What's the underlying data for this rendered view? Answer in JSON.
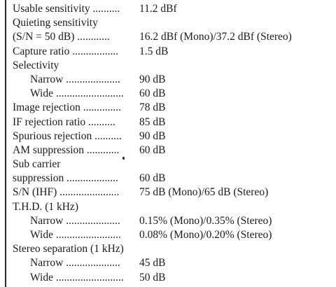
{
  "specs": [
    {
      "label": "Usable sensitivity ..........",
      "value": "11.2 dBf",
      "indent": false
    },
    {
      "label": "Quieting sensitivity",
      "value": "",
      "indent": false
    },
    {
      "label": "(S/N = 50 dB) ............",
      "value": "16.2 dBf (Mono)/37.2 dBf (Stereo)",
      "indent": false
    },
    {
      "label": "Capture ratio .................",
      "value": "1.5 dB",
      "indent": false
    },
    {
      "label": "Selectivity",
      "value": "",
      "indent": false
    },
    {
      "label": "Narrow ....................",
      "value": "90 dB",
      "indent": true
    },
    {
      "label": "Wide .........................",
      "value": "60 dB",
      "indent": true
    },
    {
      "label": "Image rejection ..............",
      "value": "78 dB",
      "indent": false
    },
    {
      "label": "IF rejection ratio ..........",
      "value": "85 dB",
      "indent": false
    },
    {
      "label": "Spurious rejection ..........",
      "value": "90 dB",
      "indent": false
    },
    {
      "label": "AM suppression ............",
      "value": "60 dB",
      "indent": false
    },
    {
      "label": "Sub carrier",
      "value": "",
      "indent": false
    },
    {
      "label": "suppression ...................",
      "value": "60 dB",
      "indent": false
    },
    {
      "label": "S/N (IHF) ......................",
      "value": "75 dB (Mono)/65 dB (Stereo)",
      "indent": false
    },
    {
      "label": "T.H.D. (1 kHz)",
      "value": "",
      "indent": false
    },
    {
      "label": "Narrow ....................",
      "value": "0.15% (Mono)/0.35% (Stereo)",
      "indent": true
    },
    {
      "label": "Wide ........................",
      "value": "0.08% (Mono)/0.20% (Stereo)",
      "indent": true
    },
    {
      "label": "Stereo separation (1 kHz)",
      "value": "",
      "indent": false
    },
    {
      "label": "Narrow ....................",
      "value": "45 dB",
      "indent": true
    },
    {
      "label": "Wide .........................",
      "value": "50 dB",
      "indent": true
    }
  ]
}
